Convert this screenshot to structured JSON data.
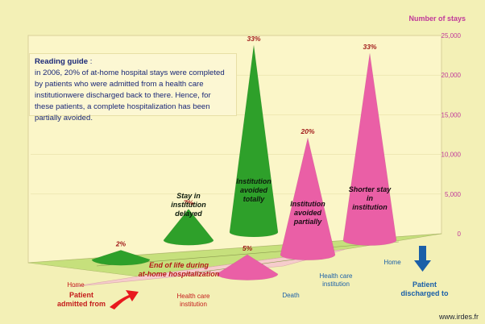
{
  "chart_data": {
    "type": "3d-cone",
    "ylabel": "Number of stays",
    "ylim": [
      0,
      25000
    ],
    "yticks": [
      "25,000",
      "20,000",
      "15,000",
      "10,000",
      "5,000",
      "0"
    ],
    "x_axis": {
      "title": "Patient admitted from",
      "categories": [
        "Home",
        "Health care institution"
      ]
    },
    "z_axis": {
      "title": "Patient discharged to",
      "categories": [
        "Death",
        "Health care institution",
        "Home"
      ]
    },
    "cones": [
      {
        "admitted": "Home",
        "discharged": "Death",
        "percent": "2%",
        "label": "",
        "value": 1200,
        "color": "#2ea02a"
      },
      {
        "admitted": "Home",
        "discharged": "Health care institution",
        "percent": "7%",
        "label": "Stay in institution delayed",
        "value": 4000,
        "color": "#2ea02a"
      },
      {
        "admitted": "Home",
        "discharged": "Home",
        "percent": "33%",
        "label": "Institution avoided totally",
        "value": 24000,
        "color": "#2ea02a"
      },
      {
        "admitted": "Health care institution",
        "discharged": "Death",
        "percent": "5%",
        "label": "",
        "value": 2500,
        "color": "#ea5fa6"
      },
      {
        "admitted": "Health care institution",
        "discharged": "Health care institution",
        "percent": "20%",
        "label": "Institution avoided partially",
        "value": 15000,
        "color": "#ea5fa6"
      },
      {
        "admitted": "Health care institution",
        "discharged": "Home",
        "percent": "33%",
        "label": "Shorter stay in institution",
        "value": 24000,
        "color": "#ea5fa6"
      }
    ],
    "annotations": {
      "end_of_life": "End of life during at-home hospitalization"
    },
    "reading_guide": {
      "title": "Reading guide",
      "text": "in 2006, 20% of at-home hospital stays were completed by patients who were admitted from a health care institutionwere discharged back to there. Hence, for these patients, a complete hospitalization has been partially avoided."
    },
    "source": "www.irdes.fr",
    "colors": {
      "background": "#f3f0b6",
      "wall": "#fbf6c8",
      "green": "#2ea02a",
      "pink": "#ea5fa6",
      "label": "#b31919",
      "axis_title": "#1a5fa8"
    }
  }
}
